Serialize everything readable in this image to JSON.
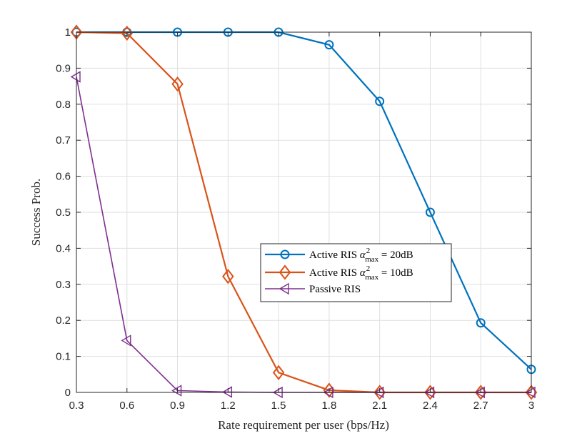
{
  "chart_data": {
    "type": "line",
    "title": "",
    "xlabel": "Rate requirement per user (bps/Hz)",
    "ylabel": "Success Prob.",
    "xlim": [
      0.3,
      3
    ],
    "ylim": [
      0,
      1
    ],
    "x": [
      0.3,
      0.6,
      0.9,
      1.2,
      1.5,
      1.8,
      2.1,
      2.4,
      2.7,
      3.0
    ],
    "xticks": [
      "0.3",
      "0.6",
      "0.9",
      "1.2",
      "1.5",
      "1.8",
      "2.1",
      "2.4",
      "2.7",
      "3"
    ],
    "yticks": [
      "0",
      "0.1",
      "0.2",
      "0.3",
      "0.4",
      "0.5",
      "0.6",
      "0.7",
      "0.8",
      "0.9",
      "1"
    ],
    "grid": true,
    "legend_position": "center-right",
    "series": [
      {
        "name": "Active RIS α²max = 20dB",
        "legend_prefix": "Active RIS ",
        "legend_symbol": "α",
        "legend_sup": "2",
        "legend_sub": "max",
        "legend_suffix": " = 20dB",
        "marker": "circle",
        "color": "#0072BD",
        "values": [
          1.0,
          1.0,
          1.0,
          1.0,
          1.0,
          0.965,
          0.808,
          0.5,
          0.193,
          0.064
        ]
      },
      {
        "name": "Active RIS α²max = 10dB",
        "legend_prefix": "Active RIS ",
        "legend_symbol": "α",
        "legend_sup": "2",
        "legend_sub": "max",
        "legend_suffix": " = 10dB",
        "marker": "diamond",
        "color": "#D95319",
        "values": [
          1.0,
          0.997,
          0.856,
          0.322,
          0.055,
          0.006,
          0.0,
          0.0,
          0.0,
          0.0
        ]
      },
      {
        "name": "Passive RIS",
        "legend_prefix": "Passive RIS",
        "marker": "triangle-left",
        "color": "#7E2F8E",
        "values": [
          0.876,
          0.144,
          0.005,
          0.001,
          0.0,
          0.0,
          0.0,
          0.0,
          0.0,
          0.0
        ]
      }
    ]
  }
}
